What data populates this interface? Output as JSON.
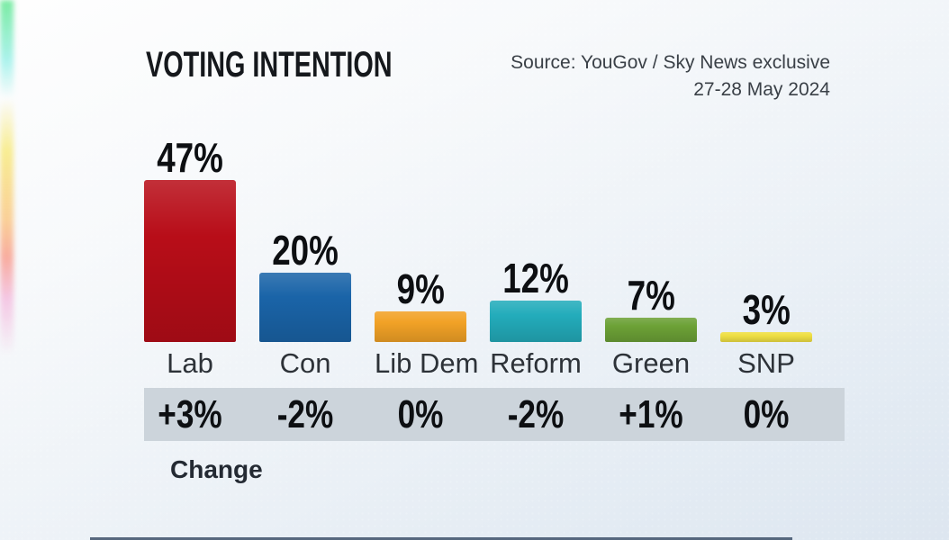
{
  "header": {
    "title": "VOTING INTENTION"
  },
  "source": {
    "line1": "Source: YouGov / Sky News exclusive",
    "line2": "27-28 May 2024"
  },
  "chart_data": {
    "type": "bar",
    "title": "VOTING INTENTION",
    "categories": [
      "Lab",
      "Con",
      "Lib Dem",
      "Reform",
      "Green",
      "SNP"
    ],
    "values": [
      47,
      20,
      9,
      12,
      7,
      3
    ],
    "value_labels": [
      "47%",
      "20%",
      "9%",
      "12%",
      "7%",
      "3%"
    ],
    "change_labels": [
      "+3%",
      "-2%",
      "0%",
      "-2%",
      "+1%",
      "0%"
    ],
    "bar_colors": [
      "#b80d18",
      "#1a64a8",
      "#f2a226",
      "#23acbb",
      "#6ca136",
      "#efdf43"
    ],
    "ylim": [
      0,
      50
    ],
    "grid": "off",
    "legend": "none",
    "source": "Source: YouGov / Sky News exclusive",
    "date": "27-28 May 2024",
    "change_row_label": "Change"
  },
  "footer": {
    "change_label": "Change"
  }
}
